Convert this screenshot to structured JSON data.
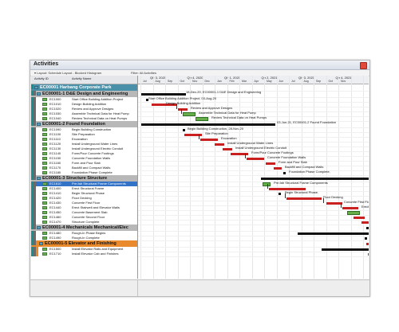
{
  "window": {
    "title": "Activities"
  },
  "toolbar": {
    "layout": "▾ Layout: Schedule Layout - Blocked Histogram",
    "filter": "Filter: All Activities"
  },
  "columns": {
    "id": "Activity ID",
    "name": "Activity Name"
  },
  "colors": {
    "wbs_blue": "#5e9fbb",
    "selected": "#3272c7",
    "bar_critical": "#c91f1f",
    "bar_progress": "#67ad49",
    "summary_bar": "#111111",
    "close_button": "#e14a3b"
  },
  "rows": [
    {
      "kind": "wbs",
      "text": "EC00001 Harbang Corporate Park",
      "fill": "#4a90a8",
      "strip": [
        "#1a8c8c"
      ]
    },
    {
      "kind": "wbs",
      "text": "EC00001-1 D&E Design and Engineering",
      "fill": "#b8b8b8",
      "strip": [
        "#1a8c8c",
        "#6a6a6a"
      ]
    },
    {
      "kind": "task",
      "id": "EC1000",
      "name": "Start Office Building Addition Project",
      "strip": [
        "#1a8c8c",
        "#6a6a6a"
      ]
    },
    {
      "kind": "task",
      "id": "EC1010",
      "name": "Design Building Addition",
      "strip": [
        "#1a8c8c",
        "#6a6a6a"
      ]
    },
    {
      "kind": "task",
      "id": "EC1020",
      "name": "Review and Approve Designs",
      "strip": [
        "#1a8c8c",
        "#6a6a6a"
      ]
    },
    {
      "kind": "task",
      "id": "EC1030",
      "name": "Assemble Technical Data for Heat Pump",
      "strip": [
        "#1a8c8c",
        "#6a6a6a"
      ]
    },
    {
      "kind": "task",
      "id": "EC1040",
      "name": "Review Technical Data on Heat Pumps",
      "strip": [
        "#1a8c8c",
        "#6a6a6a"
      ]
    },
    {
      "kind": "wbs",
      "text": "EC00001-2 Found Foundation",
      "fill": "#b8b8b8",
      "strip": [
        "#1a8c8c",
        "#6a6a6a"
      ]
    },
    {
      "kind": "task",
      "id": "EC1090",
      "name": "Begin Building Construction",
      "strip": [
        "#1a8c8c",
        "#6a6a6a"
      ]
    },
    {
      "kind": "task",
      "id": "EC1100",
      "name": "Site Preparation",
      "strip": [
        "#1a8c8c",
        "#6a6a6a"
      ]
    },
    {
      "kind": "task",
      "id": "EC1110",
      "name": "Excavation",
      "strip": [
        "#1a8c8c",
        "#6a6a6a"
      ]
    },
    {
      "kind": "task",
      "id": "EC1120",
      "name": "Install Underground Water Lines",
      "strip": [
        "#1a8c8c",
        "#6a6a6a"
      ]
    },
    {
      "kind": "task",
      "id": "EC1130",
      "name": "Install Underground Electric Conduit",
      "strip": [
        "#1a8c8c",
        "#6a6a6a"
      ]
    },
    {
      "kind": "task",
      "id": "EC1140",
      "name": "Form/Pour Concrete Footings",
      "strip": [
        "#1a8c8c",
        "#6a6a6a"
      ]
    },
    {
      "kind": "task",
      "id": "EC1150",
      "name": "Concrete Foundation Walls",
      "strip": [
        "#1a8c8c",
        "#6a6a6a"
      ]
    },
    {
      "kind": "task",
      "id": "EC1160",
      "name": "Form and Pour Slab",
      "strip": [
        "#1a8c8c",
        "#6a6a6a"
      ]
    },
    {
      "kind": "task",
      "id": "EC1170",
      "name": "Backfill and Compact Walls",
      "strip": [
        "#1a8c8c",
        "#6a6a6a"
      ]
    },
    {
      "kind": "task",
      "id": "EC1180",
      "name": "Foundation Phase Complete",
      "strip": [
        "#1a8c8c",
        "#6a6a6a"
      ]
    },
    {
      "kind": "wbs",
      "text": "EC00001-3 Structure Structure",
      "fill": "#b8b8b8",
      "strip": [
        "#1a8c8c",
        "#6a6a6a"
      ]
    },
    {
      "kind": "task",
      "id": "EC1610",
      "name": "Pre-fab Structural Frame Components",
      "strip": [
        "#1a8c8c",
        "#6a6a6a"
      ],
      "selected": true
    },
    {
      "kind": "task",
      "id": "EC1400",
      "name": "Erect Structural Frame",
      "strip": [
        "#1a8c8c",
        "#6a6a6a"
      ]
    },
    {
      "kind": "task",
      "id": "EC1410",
      "name": "Begin Structural Phase",
      "strip": [
        "#1a8c8c",
        "#6a6a6a"
      ]
    },
    {
      "kind": "task",
      "id": "EC1420",
      "name": "Floor Decking",
      "strip": [
        "#1a8c8c",
        "#6a6a6a"
      ]
    },
    {
      "kind": "task",
      "id": "EC1430",
      "name": "Concrete First Floor",
      "strip": [
        "#1a8c8c",
        "#6a6a6a"
      ]
    },
    {
      "kind": "task",
      "id": "EC1440",
      "name": "Erect Stairwell and Elevator Walls",
      "strip": [
        "#1a8c8c",
        "#6a6a6a"
      ]
    },
    {
      "kind": "task",
      "id": "EC1450",
      "name": "Concrete Basement Slab",
      "strip": [
        "#1a8c8c",
        "#6a6a6a"
      ]
    },
    {
      "kind": "task",
      "id": "EC1460",
      "name": "Concrete Second Floor",
      "strip": [
        "#1a8c8c",
        "#6a6a6a"
      ]
    },
    {
      "kind": "task",
      "id": "EC1470",
      "name": "Structure Complete",
      "strip": [
        "#1a8c8c",
        "#6a6a6a"
      ]
    },
    {
      "kind": "wbs",
      "text": "EC00001-4 Mechanicals Mechanical/Elec",
      "fill": "#b8b8b8",
      "strip": [
        "#1a8c8c",
        "#6a6a6a"
      ]
    },
    {
      "kind": "task",
      "id": "EC1480",
      "name": "Rough-In Phase Begins",
      "strip": [
        "#1a8c8c",
        "#6a6a6a"
      ]
    },
    {
      "kind": "task",
      "id": "EC1490",
      "name": "Rough-In Complete",
      "strip": [
        "#1a8c8c",
        "#6a6a6a"
      ]
    },
    {
      "kind": "wbs",
      "text": "EC00001-5 Elevator and Finishing",
      "fill": "#e98a2c",
      "strip": [
        "#1a8c8c",
        "#6a6a6a",
        "#e98a2c"
      ]
    },
    {
      "kind": "task",
      "id": "EC1500",
      "name": "Install Elevator Rails and Equipment",
      "strip": [
        "#1a8c8c",
        "#6a6a6a",
        "#e98a2c"
      ]
    },
    {
      "kind": "task",
      "id": "EC1710",
      "name": "Install Elevator Cab and Finishes",
      "strip": [
        "#1a8c8c",
        "#6a6a6a",
        "#e98a2c"
      ]
    }
  ],
  "timescale": {
    "quarters": [
      "Qtr 3, 2020",
      "Qtr 4, 2020",
      "Qtr 1, 2021",
      "Qtr 2, 2021",
      "Qtr 3, 2021",
      "Qtr 4, 2021"
    ],
    "months": [
      "Jul",
      "Aug",
      "Sep",
      "Oct",
      "Nov",
      "Dec",
      "Jan",
      "Feb",
      "Mar",
      "Apr",
      "May",
      "Jun",
      "Jul",
      "Aug",
      "Sep",
      "Oct",
      "Nov"
    ]
  },
  "gantt_labels": {
    "r1": "18-Dec-20, EC00001-1 D&E Design and Engineering",
    "r2": "Start Office Building Addition Project, 03-Aug-20",
    "r3": "Design Building Addition",
    "r4": "Review and Approve Designs",
    "r5": "Assemble Technical Data for Heat Pump",
    "r6": "Review Technical Data on Heat Pumps",
    "r7": "03-Jun-21, EC00001-2 Found Foundation",
    "r8": "Begin Building Construction, 28-Nov-20",
    "r9": "Site Preparation",
    "r10": "Excavation",
    "r11": "Install Underground Water Lines",
    "r12": "Install Underground Electric Conduit",
    "r13": "Form/Pour Concrete Footings",
    "r14": "Concrete Foundation Walls",
    "r15": "Form and Pour Slab",
    "r16": "Backfill and Compact Walls",
    "r17": "Foundation Phase Complete,",
    "r19": "Pre-fab Structural Frame Components",
    "r20": "Erect Structural Frame",
    "r21": "Begin Structural Phase,",
    "r22": "Floor Decking",
    "r23": "Concrete First Floor",
    "r24": "Erect Stairwell and Elevator"
  }
}
